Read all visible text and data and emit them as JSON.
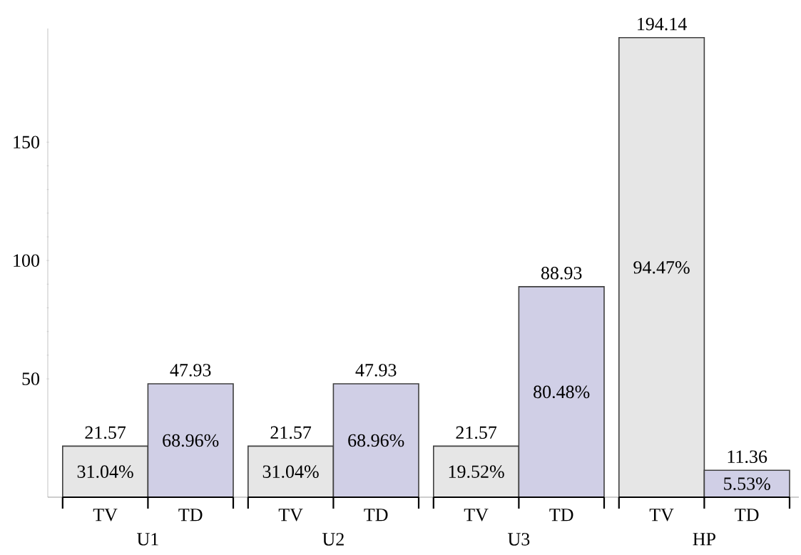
{
  "chart_data": {
    "type": "bar",
    "categories": [
      "U1",
      "U2",
      "U3",
      "HP"
    ],
    "series": [
      {
        "name": "TV",
        "color": "#e6e6e6",
        "values": [
          21.57,
          21.57,
          21.57,
          194.14
        ],
        "value_labels": [
          "21.57",
          "21.57",
          "21.57",
          "194.14"
        ]
      },
      {
        "name": "TD",
        "color": "#d0cfe6",
        "values": [
          47.93,
          47.93,
          88.93,
          11.36
        ],
        "value_labels": [
          "47.93",
          "47.93",
          "88.93",
          "11.36"
        ]
      }
    ],
    "annotations": [
      "31.04%",
      "31.04%",
      "19.52%",
      "94.47%",
      "68.96%",
      "68.96%",
      "80.48%",
      "5.53%"
    ],
    "ylim": [
      0,
      198
    ],
    "yticks": [
      50,
      100,
      150
    ],
    "ref_lines": [
      {
        "axis": "y",
        "value": 0
      }
    ]
  }
}
